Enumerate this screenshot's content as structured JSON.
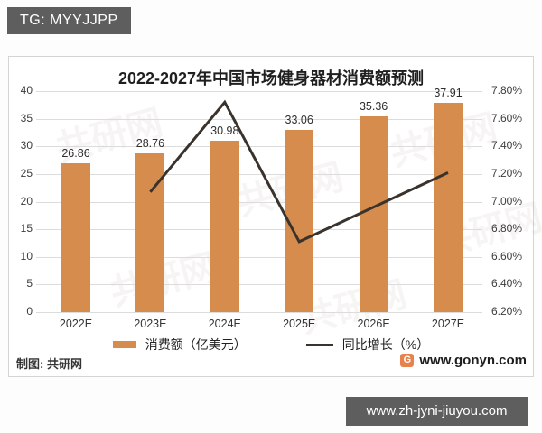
{
  "badges": {
    "top_left": "TG: MYYJJPP",
    "bottom_right": "www.zh-jyni-jiuyou.com"
  },
  "chart_data": {
    "type": "combo",
    "title": "2022-2027年中国市场健身器材消费额预测",
    "categories": [
      "2022E",
      "2023E",
      "2024E",
      "2025E",
      "2026E",
      "2027E"
    ],
    "series": [
      {
        "name": "消费额（亿美元）",
        "type": "bar",
        "axis": "left",
        "values": [
          26.86,
          28.76,
          30.98,
          33.06,
          35.36,
          37.91
        ],
        "labels": [
          "26.86",
          "28.76",
          "30.98",
          "33.06",
          "35.36",
          "37.91"
        ],
        "color": "#d58c4d"
      },
      {
        "name": "同比增长（%）",
        "type": "line",
        "axis": "right",
        "values": [
          null,
          7.07,
          7.72,
          6.71,
          6.96,
          7.21
        ],
        "color": "#3a332d"
      }
    ],
    "left_axis": {
      "min": 0,
      "max": 40,
      "step": 5,
      "ticks": [
        "0",
        "5",
        "10",
        "15",
        "20",
        "25",
        "30",
        "35",
        "40"
      ]
    },
    "right_axis": {
      "min": 6.2,
      "max": 7.8,
      "step": 0.2,
      "ticks": [
        "6.20%",
        "6.40%",
        "6.60%",
        "6.80%",
        "7.00%",
        "7.20%",
        "7.40%",
        "7.60%",
        "7.80%"
      ]
    },
    "grid": true,
    "legend_position": "bottom",
    "watermark": "共研网"
  },
  "footer": {
    "credit": "制图: 共研网",
    "site": "www.gonyn.com",
    "logo_letter": "G"
  },
  "colors": {
    "bar": "#d58c4d",
    "line": "#3a332d",
    "badge_bg": "#5e5e5e",
    "grid": "#dcdcdc",
    "panel_border": "#d4d4d4"
  }
}
